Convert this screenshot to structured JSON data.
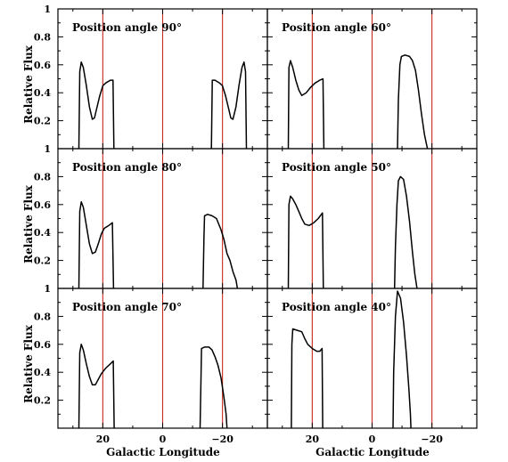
{
  "chart_data": {
    "type": "line",
    "layout": "3 rows x 2 columns of panels, shared axes",
    "xlabel": "Galactic Longitude",
    "ylabel": "Relative Flux",
    "xlim": [
      35,
      -35
    ],
    "ylim": [
      0,
      1
    ],
    "xticks": [
      20,
      0,
      -20
    ],
    "xtick_labels": [
      "20",
      "0",
      "−20"
    ],
    "yticks": [
      0.2,
      0.4,
      0.6,
      0.8,
      1
    ],
    "ytick_labels": [
      "0.2",
      "0.4",
      "0.6",
      "0.8",
      "1"
    ],
    "reference_lines_x": [
      20,
      0,
      -20
    ],
    "reference_line_color": "#c8281e",
    "panels": [
      {
        "title": "Position angle 90°",
        "row": 0,
        "col": 0,
        "segments": [
          [
            [
              28,
              0
            ],
            [
              27.7,
              0.55
            ],
            [
              27.2,
              0.62
            ],
            [
              26.5,
              0.58
            ],
            [
              25.5,
              0.45
            ],
            [
              24.5,
              0.3
            ],
            [
              23.5,
              0.21
            ],
            [
              22.8,
              0.22
            ],
            [
              22,
              0.29
            ],
            [
              21,
              0.38
            ],
            [
              20,
              0.45
            ],
            [
              19,
              0.47
            ],
            [
              17.5,
              0.49
            ],
            [
              16.6,
              0.49
            ],
            [
              16.3,
              0
            ]
          ],
          [
            [
              -16.3,
              0
            ],
            [
              -16.6,
              0.49
            ],
            [
              -17.5,
              0.49
            ],
            [
              -19,
              0.47
            ],
            [
              -20,
              0.45
            ],
            [
              -21,
              0.38
            ],
            [
              -22,
              0.29
            ],
            [
              -22.8,
              0.22
            ],
            [
              -23.5,
              0.21
            ],
            [
              -24.5,
              0.3
            ],
            [
              -25.5,
              0.45
            ],
            [
              -26.5,
              0.58
            ],
            [
              -27.2,
              0.62
            ],
            [
              -27.7,
              0.55
            ],
            [
              -28,
              0
            ]
          ]
        ]
      },
      {
        "title": "Position angle 60°",
        "row": 0,
        "col": 1,
        "segments": [
          [
            [
              28,
              0
            ],
            [
              27.8,
              0.58
            ],
            [
              27.3,
              0.63
            ],
            [
              26.5,
              0.58
            ],
            [
              25.5,
              0.49
            ],
            [
              24.5,
              0.42
            ],
            [
              23.5,
              0.38
            ],
            [
              22,
              0.4
            ],
            [
              20.5,
              0.44
            ],
            [
              19,
              0.47
            ],
            [
              17.5,
              0.49
            ],
            [
              16.4,
              0.5
            ],
            [
              16.1,
              0
            ]
          ],
          [
            [
              -8.5,
              0
            ],
            [
              -8.8,
              0.35
            ],
            [
              -9.3,
              0.6
            ],
            [
              -9.8,
              0.66
            ],
            [
              -11,
              0.67
            ],
            [
              -12.5,
              0.66
            ],
            [
              -13.5,
              0.63
            ],
            [
              -14.5,
              0.56
            ],
            [
              -15.5,
              0.42
            ],
            [
              -16.5,
              0.25
            ],
            [
              -17.5,
              0.1
            ],
            [
              -18.5,
              0
            ]
          ]
        ]
      },
      {
        "title": "Position angle 80°",
        "row": 1,
        "col": 0,
        "segments": [
          [
            [
              28,
              0
            ],
            [
              27.7,
              0.55
            ],
            [
              27.2,
              0.62
            ],
            [
              26.5,
              0.58
            ],
            [
              25.5,
              0.45
            ],
            [
              24.5,
              0.32
            ],
            [
              23.5,
              0.25
            ],
            [
              22.5,
              0.26
            ],
            [
              21.5,
              0.32
            ],
            [
              20.5,
              0.39
            ],
            [
              19.5,
              0.43
            ],
            [
              18,
              0.45
            ],
            [
              16.8,
              0.47
            ],
            [
              16.4,
              0
            ]
          ],
          [
            [
              -13.5,
              0
            ],
            [
              -13.8,
              0.35
            ],
            [
              -14,
              0.52
            ],
            [
              -15,
              0.53
            ],
            [
              -16.5,
              0.52
            ],
            [
              -18,
              0.5
            ],
            [
              -19.5,
              0.42
            ],
            [
              -20.5,
              0.35
            ],
            [
              -21.5,
              0.25
            ],
            [
              -22.5,
              0.2
            ],
            [
              -23.5,
              0.12
            ],
            [
              -24.5,
              0.06
            ],
            [
              -25,
              0
            ]
          ]
        ]
      },
      {
        "title": "Position angle 50°",
        "row": 1,
        "col": 1,
        "segments": [
          [
            [
              28,
              0
            ],
            [
              27.8,
              0.6
            ],
            [
              27.3,
              0.66
            ],
            [
              26.5,
              0.64
            ],
            [
              25.5,
              0.6
            ],
            [
              24.5,
              0.55
            ],
            [
              23.5,
              0.5
            ],
            [
              22.5,
              0.46
            ],
            [
              21,
              0.45
            ],
            [
              19.5,
              0.47
            ],
            [
              18,
              0.5
            ],
            [
              16.6,
              0.54
            ],
            [
              16.3,
              0
            ]
          ],
          [
            [
              -7.5,
              0
            ],
            [
              -7.8,
              0.3
            ],
            [
              -8.3,
              0.6
            ],
            [
              -8.8,
              0.77
            ],
            [
              -9.5,
              0.8
            ],
            [
              -10.5,
              0.78
            ],
            [
              -11.5,
              0.66
            ],
            [
              -12.5,
              0.48
            ],
            [
              -13.5,
              0.26
            ],
            [
              -14.3,
              0.1
            ],
            [
              -15,
              0
            ]
          ]
        ]
      },
      {
        "title": "Position angle 70°",
        "row": 2,
        "col": 0,
        "segments": [
          [
            [
              28,
              0
            ],
            [
              27.7,
              0.54
            ],
            [
              27.2,
              0.6
            ],
            [
              26.5,
              0.56
            ],
            [
              25.5,
              0.46
            ],
            [
              24.5,
              0.37
            ],
            [
              23.5,
              0.31
            ],
            [
              22.5,
              0.31
            ],
            [
              21.5,
              0.35
            ],
            [
              20.5,
              0.39
            ],
            [
              19,
              0.43
            ],
            [
              17.5,
              0.46
            ],
            [
              16.5,
              0.48
            ],
            [
              16.2,
              0
            ]
          ],
          [
            [
              -12.5,
              0
            ],
            [
              -12.8,
              0.35
            ],
            [
              -13,
              0.57
            ],
            [
              -14,
              0.58
            ],
            [
              -15.5,
              0.58
            ],
            [
              -16.5,
              0.56
            ],
            [
              -17.5,
              0.51
            ],
            [
              -18.5,
              0.45
            ],
            [
              -19.5,
              0.36
            ],
            [
              -20.5,
              0.22
            ],
            [
              -21.2,
              0.1
            ],
            [
              -21.5,
              0
            ]
          ]
        ]
      },
      {
        "title": "Position angle 40°",
        "row": 2,
        "col": 1,
        "segments": [
          [
            [
              27,
              0
            ],
            [
              26.8,
              0.6
            ],
            [
              26.5,
              0.71
            ],
            [
              25,
              0.7
            ],
            [
              23.5,
              0.69
            ],
            [
              22.5,
              0.64
            ],
            [
              21.5,
              0.6
            ],
            [
              20,
              0.57
            ],
            [
              18.5,
              0.55
            ],
            [
              17.5,
              0.55
            ],
            [
              16.7,
              0.57
            ],
            [
              16.5,
              0
            ]
          ],
          [
            [
              -7,
              0
            ],
            [
              -7.2,
              0.4
            ],
            [
              -7.8,
              0.8
            ],
            [
              -8.5,
              0.98
            ],
            [
              -9.5,
              0.93
            ],
            [
              -10.5,
              0.76
            ],
            [
              -11.5,
              0.52
            ],
            [
              -12.3,
              0.28
            ],
            [
              -12.8,
              0.1
            ],
            [
              -13,
              0
            ]
          ]
        ]
      }
    ]
  }
}
